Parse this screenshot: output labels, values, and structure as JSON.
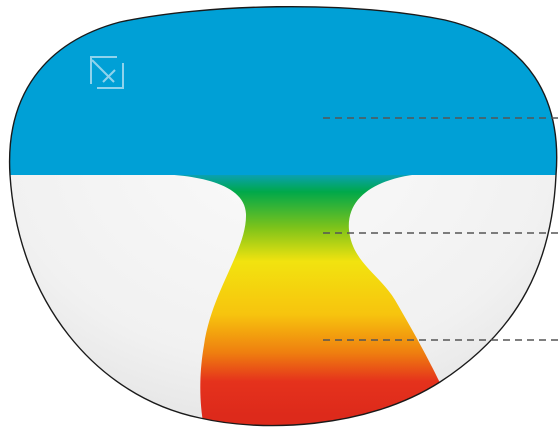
{
  "diagram": {
    "kind": "progressive-lens-zones",
    "zones": [
      {
        "id": "distance",
        "color": "#00a0d6"
      },
      {
        "id": "intermediate",
        "colors": [
          "#00a84a",
          "#7ec31a",
          "#f2e30f"
        ]
      },
      {
        "id": "near",
        "colors": [
          "#f7c40e",
          "#ef7f0f",
          "#e5321c"
        ]
      }
    ],
    "peripheral_color": "#f3f3f3",
    "outline_color": "#1a1a1a",
    "leader_line_color": "#555555",
    "leader_lines": 3,
    "icons": [
      "lens-marker-icon"
    ]
  }
}
